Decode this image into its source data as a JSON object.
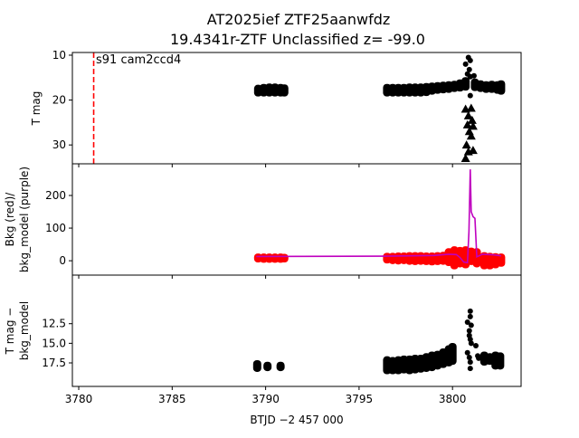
{
  "chart_data": {
    "type": "scatter",
    "title_line1": "AT2025ief  ZTF25aanwfdz",
    "title_line2": "19.4341r-ZTF Unclassified z= -99.0",
    "xlabel": "BTJD −2 457 000",
    "xlim": [
      3779.66,
      3803.67
    ],
    "xticks": [
      "3780",
      "3785",
      "3790",
      "3795",
      "3800"
    ],
    "annotation": {
      "text": "s91 cam2ccd4",
      "x": 3780.8,
      "line_color": "#ff0000"
    },
    "panels": [
      {
        "ylabel": [
          "T mag"
        ],
        "ylim": [
          34.2,
          9.4
        ],
        "yticks": [
          "10",
          "20",
          "30"
        ],
        "detections_binned": [
          [
            3789.6,
            17.2,
            18.6
          ],
          [
            3789.9,
            17.0,
            18.6
          ],
          [
            3790.2,
            16.9,
            18.6
          ],
          [
            3790.5,
            16.9,
            18.6
          ],
          [
            3790.8,
            17.0,
            18.6
          ],
          [
            3791.0,
            17.1,
            18.6
          ],
          [
            3796.5,
            17.0,
            18.6
          ],
          [
            3796.8,
            17.0,
            18.6
          ],
          [
            3797.1,
            17.0,
            18.6
          ],
          [
            3797.4,
            17.0,
            18.6
          ],
          [
            3797.7,
            16.9,
            18.6
          ],
          [
            3798.0,
            16.9,
            18.6
          ],
          [
            3798.3,
            16.9,
            18.6
          ],
          [
            3798.6,
            16.8,
            18.5
          ],
          [
            3798.9,
            16.7,
            18.2
          ],
          [
            3799.2,
            16.6,
            18.0
          ],
          [
            3799.5,
            16.5,
            17.9
          ],
          [
            3799.8,
            16.4,
            17.8
          ],
          [
            3800.1,
            16.3,
            17.6
          ],
          [
            3800.4,
            16.0,
            17.5
          ],
          [
            3800.7,
            15.5,
            17.3
          ],
          [
            3801.2,
            15.8,
            17.4
          ],
          [
            3801.5,
            16.2,
            17.6
          ],
          [
            3801.8,
            16.4,
            17.8
          ],
          [
            3802.1,
            16.3,
            17.8
          ],
          [
            3802.4,
            16.4,
            18.0
          ],
          [
            3802.6,
            16.2,
            18.2
          ]
        ],
        "detections_points": [
          [
            3800.85,
            10.5
          ],
          [
            3800.95,
            11.2
          ],
          [
            3800.7,
            12.0
          ],
          [
            3800.9,
            13.2
          ],
          [
            3800.8,
            14.2
          ],
          [
            3800.95,
            14.8
          ],
          [
            3801.15,
            14.6
          ],
          [
            3800.95,
            19.0
          ]
        ],
        "upper_limits": [
          [
            3800.7,
            22.0
          ],
          [
            3801.0,
            21.8
          ],
          [
            3800.85,
            23.5
          ],
          [
            3801.05,
            24.5
          ],
          [
            3800.8,
            25.5
          ],
          [
            3801.1,
            25.8
          ],
          [
            3800.9,
            27.0
          ],
          [
            3801.0,
            28.0
          ],
          [
            3800.75,
            30.0
          ],
          [
            3801.1,
            31.2
          ],
          [
            3800.85,
            31.5
          ],
          [
            3800.7,
            33.0
          ]
        ],
        "marker_color": "#000000"
      },
      {
        "ylabel": [
          "Bkg (red)/",
          "bkg_model (purple)"
        ],
        "ylim": [
          -44,
          297
        ],
        "yticks": [
          "0",
          "100",
          "200"
        ],
        "tick_values": [
          0,
          100,
          200
        ],
        "bkg_binned": [
          [
            3789.6,
            3,
            14
          ],
          [
            3789.9,
            2,
            14
          ],
          [
            3790.2,
            2,
            14
          ],
          [
            3790.5,
            2,
            14
          ],
          [
            3790.8,
            2,
            14
          ],
          [
            3791.0,
            3,
            13
          ],
          [
            3796.5,
            0,
            16
          ],
          [
            3796.8,
            -2,
            16
          ],
          [
            3797.1,
            -3,
            17
          ],
          [
            3797.4,
            -2,
            17
          ],
          [
            3797.7,
            -4,
            18
          ],
          [
            3798.0,
            -5,
            18
          ],
          [
            3798.3,
            -4,
            18
          ],
          [
            3798.6,
            -5,
            17
          ],
          [
            3798.9,
            -6,
            17
          ],
          [
            3799.2,
            -5,
            18
          ],
          [
            3799.5,
            -4,
            19
          ],
          [
            3799.8,
            -8,
            30
          ],
          [
            3800.1,
            -18,
            36
          ],
          [
            3800.4,
            -12,
            34
          ],
          [
            3800.7,
            -15,
            36
          ],
          [
            3801.0,
            -5,
            32
          ],
          [
            3801.3,
            -12,
            30
          ],
          [
            3801.7,
            -18,
            18
          ],
          [
            3802.0,
            -18,
            16
          ],
          [
            3802.3,
            -15,
            15
          ],
          [
            3802.6,
            -10,
            14
          ]
        ],
        "bkg_color": "#ff0000",
        "model_line": [
          [
            3789.5,
            13
          ],
          [
            3796.4,
            14
          ],
          [
            3799.0,
            16
          ],
          [
            3799.8,
            20
          ],
          [
            3800.2,
            19
          ],
          [
            3800.4,
            10
          ],
          [
            3800.6,
            -4
          ],
          [
            3800.8,
            -6
          ],
          [
            3800.88,
            90
          ],
          [
            3800.95,
            280
          ],
          [
            3801.0,
            150
          ],
          [
            3801.1,
            135
          ],
          [
            3801.2,
            130
          ],
          [
            3801.3,
            12
          ],
          [
            3801.6,
            20
          ],
          [
            3802.2,
            18
          ],
          [
            3802.6,
            15
          ]
        ],
        "model_color": "#bf00bf"
      },
      {
        "ylabel": [
          "T mag −",
          "bkg_model"
        ],
        "ylim": [
          20.5,
          6.3
        ],
        "yticks": [
          "12.5",
          "15.0",
          "17.5"
        ],
        "tick_values": [
          12.5,
          15.0,
          17.5
        ],
        "binned": [
          [
            3789.55,
            17.5,
            18.3
          ],
          [
            3790.1,
            17.7,
            18.2
          ],
          [
            3790.8,
            17.7,
            18.2
          ],
          [
            3796.5,
            17.0,
            18.6
          ],
          [
            3796.8,
            17.1,
            18.6
          ],
          [
            3797.1,
            17.0,
            18.6
          ],
          [
            3797.4,
            16.9,
            18.5
          ],
          [
            3797.7,
            16.9,
            18.6
          ],
          [
            3798.0,
            16.8,
            18.5
          ],
          [
            3798.3,
            16.8,
            18.4
          ],
          [
            3798.6,
            16.6,
            18.3
          ],
          [
            3798.9,
            16.4,
            18.2
          ],
          [
            3799.2,
            16.3,
            18.0
          ],
          [
            3799.5,
            16.0,
            17.8
          ],
          [
            3799.8,
            15.6,
            17.6
          ],
          [
            3800.0,
            15.3,
            17.4
          ],
          [
            3801.7,
            16.4,
            17.5
          ],
          [
            3802.0,
            16.6,
            17.4
          ],
          [
            3802.3,
            16.4,
            18.0
          ],
          [
            3802.55,
            16.5,
            18.0
          ]
        ],
        "points": [
          [
            3800.95,
            10.9
          ],
          [
            3800.95,
            11.6
          ],
          [
            3800.8,
            12.3
          ],
          [
            3801.0,
            12.7
          ],
          [
            3800.9,
            13.4
          ],
          [
            3800.9,
            14.0
          ],
          [
            3800.95,
            14.5
          ],
          [
            3801.0,
            15.0
          ],
          [
            3801.25,
            15.3
          ],
          [
            3800.8,
            16.2
          ],
          [
            3800.9,
            16.8
          ],
          [
            3801.35,
            16.6
          ],
          [
            3800.95,
            17.4
          ],
          [
            3800.95,
            18.2
          ],
          [
            3801.4,
            16.9
          ]
        ],
        "marker_color": "#000000"
      }
    ]
  }
}
